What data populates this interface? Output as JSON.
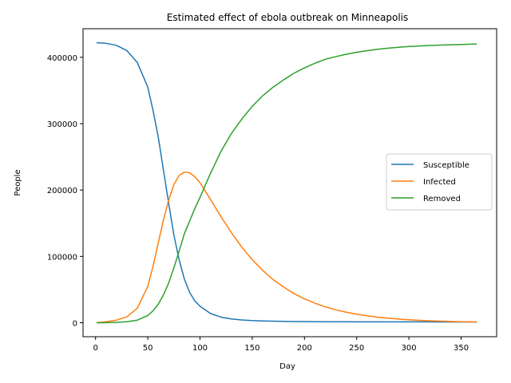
{
  "chart_data": {
    "type": "line",
    "title": "Estimated effect of ebola outbreak on Minneapolis",
    "xlabel": "Day",
    "ylabel": "People",
    "xlim": [
      -12,
      384
    ],
    "ylim": [
      -21000,
      443000
    ],
    "xticks": [
      0,
      50,
      100,
      150,
      200,
      250,
      300,
      350
    ],
    "yticks": [
      0,
      100000,
      200000,
      300000,
      400000
    ],
    "grid": false,
    "legend": "center-right",
    "x": [
      1,
      10,
      20,
      30,
      40,
      50,
      55,
      60,
      65,
      70,
      75,
      80,
      85,
      90,
      95,
      100,
      110,
      120,
      130,
      140,
      150,
      160,
      170,
      180,
      190,
      200,
      210,
      220,
      230,
      240,
      250,
      260,
      270,
      280,
      290,
      300,
      310,
      320,
      330,
      340,
      350,
      365
    ],
    "series": [
      {
        "name": "Susceptible",
        "color": "#1f77b4",
        "values": [
          422000,
          421000,
          418000,
          410000,
          392000,
          355000,
          320000,
          280000,
          230000,
          180000,
          132000,
          95000,
          66000,
          46000,
          33000,
          25000,
          14000,
          8500,
          5800,
          4200,
          3300,
          2800,
          2400,
          2100,
          1900,
          1800,
          1700,
          1600,
          1550,
          1500,
          1450,
          1420,
          1400,
          1380,
          1360,
          1340,
          1330,
          1320,
          1310,
          1300,
          1290,
          1280
        ]
      },
      {
        "name": "Infected",
        "color": "#ff7f0e",
        "values": [
          200,
          1500,
          4000,
          9000,
          22000,
          55000,
          85000,
          120000,
          155000,
          185000,
          208000,
          222000,
          227000,
          226000,
          220000,
          211000,
          186000,
          160000,
          136000,
          114000,
          95000,
          79000,
          65000,
          54000,
          44000,
          36000,
          29500,
          24000,
          19500,
          16000,
          13000,
          10500,
          8500,
          6900,
          5600,
          4500,
          3700,
          3000,
          2400,
          2000,
          1600,
          1200
        ]
      },
      {
        "name": "Removed",
        "color": "#2ca02c",
        "values": [
          0,
          200,
          600,
          1500,
          4000,
          11000,
          18000,
          28000,
          42000,
          60000,
          83000,
          108000,
          134000,
          153000,
          172000,
          189000,
          225000,
          258000,
          285000,
          307000,
          326000,
          342000,
          355000,
          366000,
          376000,
          384000,
          391000,
          397000,
          401000,
          404500,
          407500,
          410000,
          412000,
          413700,
          415000,
          416200,
          417000,
          417700,
          418300,
          418800,
          419300,
          420000
        ]
      }
    ]
  }
}
